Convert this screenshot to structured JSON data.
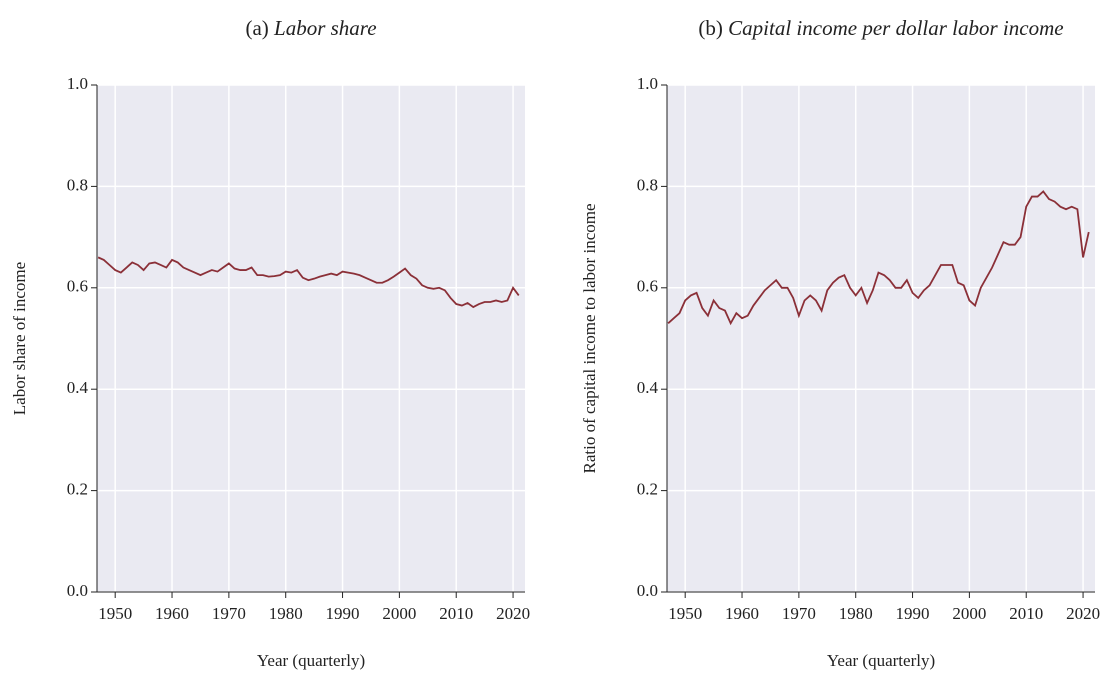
{
  "chart_data": [
    {
      "type": "line",
      "panel": "(a)",
      "title": "Labor share",
      "xlabel": "Year (quarterly)",
      "ylabel": "Labor share of income",
      "x": [
        1947,
        1948,
        1949,
        1950,
        1951,
        1952,
        1953,
        1954,
        1955,
        1956,
        1957,
        1958,
        1959,
        1960,
        1961,
        1962,
        1963,
        1964,
        1965,
        1966,
        1967,
        1968,
        1969,
        1970,
        1971,
        1972,
        1973,
        1974,
        1975,
        1976,
        1977,
        1978,
        1979,
        1980,
        1981,
        1982,
        1983,
        1984,
        1985,
        1986,
        1987,
        1988,
        1989,
        1990,
        1991,
        1992,
        1993,
        1994,
        1995,
        1996,
        1997,
        1998,
        1999,
        2000,
        2001,
        2002,
        2003,
        2004,
        2005,
        2006,
        2007,
        2008,
        2009,
        2010,
        2011,
        2012,
        2013,
        2014,
        2015,
        2016,
        2017,
        2018,
        2019,
        2020,
        2021
      ],
      "series": [
        {
          "color": "#8b3038",
          "values": [
            0.66,
            0.655,
            0.645,
            0.635,
            0.63,
            0.64,
            0.65,
            0.645,
            0.635,
            0.648,
            0.65,
            0.645,
            0.64,
            0.655,
            0.65,
            0.64,
            0.635,
            0.63,
            0.625,
            0.63,
            0.635,
            0.632,
            0.64,
            0.648,
            0.638,
            0.635,
            0.635,
            0.64,
            0.625,
            0.625,
            0.622,
            0.623,
            0.625,
            0.632,
            0.63,
            0.635,
            0.62,
            0.615,
            0.618,
            0.622,
            0.625,
            0.628,
            0.625,
            0.632,
            0.63,
            0.628,
            0.625,
            0.62,
            0.615,
            0.61,
            0.61,
            0.615,
            0.622,
            0.63,
            0.638,
            0.625,
            0.618,
            0.605,
            0.6,
            0.598,
            0.6,
            0.595,
            0.58,
            0.568,
            0.565,
            0.57,
            0.562,
            0.568,
            0.572,
            0.572,
            0.575,
            0.572,
            0.575,
            0.6,
            0.585
          ]
        }
      ],
      "xlim": [
        1946.8,
        2022.1
      ],
      "xticks": [
        1950,
        1960,
        1970,
        1980,
        1990,
        2000,
        2010,
        2020
      ],
      "ylim": [
        0,
        1
      ],
      "yticks": [
        {
          "value": 0,
          "label": "0.0"
        },
        0.2,
        0.4,
        0.6,
        0.8,
        {
          "value": 1,
          "label": "1.0"
        }
      ],
      "grid": true
    },
    {
      "type": "line",
      "panel": "(b)",
      "title": "Capital income per dollar labor income",
      "xlabel": "Year (quarterly)",
      "ylabel": "Ratio of capital income to labor income",
      "x": [
        1947,
        1948,
        1949,
        1950,
        1951,
        1952,
        1953,
        1954,
        1955,
        1956,
        1957,
        1958,
        1959,
        1960,
        1961,
        1962,
        1963,
        1964,
        1965,
        1966,
        1967,
        1968,
        1969,
        1970,
        1971,
        1972,
        1973,
        1974,
        1975,
        1976,
        1977,
        1978,
        1979,
        1980,
        1981,
        1982,
        1983,
        1984,
        1985,
        1986,
        1987,
        1988,
        1989,
        1990,
        1991,
        1992,
        1993,
        1994,
        1995,
        1996,
        1997,
        1998,
        1999,
        2000,
        2001,
        2002,
        2003,
        2004,
        2005,
        2006,
        2007,
        2008,
        2009,
        2010,
        2011,
        2012,
        2013,
        2014,
        2015,
        2016,
        2017,
        2018,
        2019,
        2020,
        2021
      ],
      "series": [
        {
          "color": "#8b3038",
          "values": [
            0.53,
            0.54,
            0.55,
            0.575,
            0.585,
            0.59,
            0.56,
            0.545,
            0.575,
            0.56,
            0.555,
            0.53,
            0.55,
            0.54,
            0.545,
            0.565,
            0.58,
            0.595,
            0.605,
            0.615,
            0.6,
            0.6,
            0.58,
            0.545,
            0.575,
            0.585,
            0.575,
            0.555,
            0.595,
            0.61,
            0.62,
            0.625,
            0.6,
            0.585,
            0.6,
            0.57,
            0.595,
            0.63,
            0.625,
            0.615,
            0.6,
            0.6,
            0.615,
            0.59,
            0.58,
            0.595,
            0.605,
            0.625,
            0.645,
            0.645,
            0.645,
            0.61,
            0.605,
            0.575,
            0.565,
            0.6,
            0.62,
            0.64,
            0.665,
            0.69,
            0.685,
            0.685,
            0.7,
            0.76,
            0.78,
            0.78,
            0.79,
            0.775,
            0.77,
            0.76,
            0.755,
            0.76,
            0.755,
            0.66,
            0.71
          ]
        }
      ],
      "xlim": [
        1946.8,
        2022.1
      ],
      "xticks": [
        1950,
        1960,
        1970,
        1980,
        1990,
        2000,
        2010,
        2020
      ],
      "ylim": [
        0,
        1
      ],
      "yticks": [
        {
          "value": 0,
          "label": "0.0"
        },
        0.2,
        0.4,
        0.6,
        0.8,
        {
          "value": 1,
          "label": "1.0"
        }
      ],
      "grid": true
    }
  ]
}
